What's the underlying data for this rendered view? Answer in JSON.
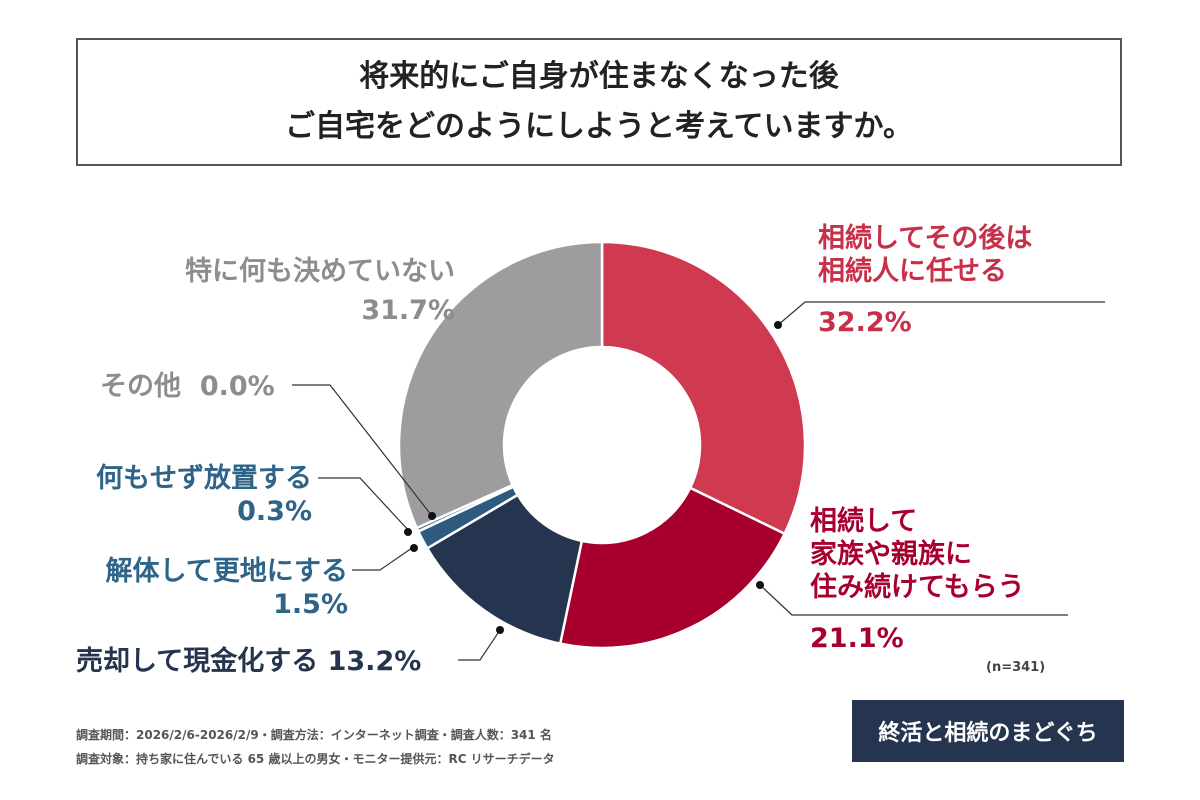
{
  "chart_data": {
    "type": "pie",
    "donut": true,
    "title": [
      "将来的にご自身が住まなくなった後",
      "ご自宅をどのようにしようと考えていますか。"
    ],
    "slices": [
      {
        "label": "相続してその後は相続人に任せる",
        "value": 32.2,
        "display": "32.2%",
        "color": "#d03a50",
        "label_color": "#c8304a"
      },
      {
        "label": "相続して家族や親族に住み続けてもらう",
        "value": 21.1,
        "display": "21.1%",
        "color": "#a8002e",
        "label_color": "#a8002e"
      },
      {
        "label": "売却して現金化する",
        "value": 13.2,
        "display": "13.2%",
        "color": "#253550",
        "label_color": "#26344f"
      },
      {
        "label": "解体して更地にする",
        "value": 1.5,
        "display": "1.5%",
        "color": "#2e5a80",
        "label_color": "#2e6488"
      },
      {
        "label": "何もせず放置する",
        "value": 0.3,
        "display": "0.3%",
        "color": "#3a6c92",
        "label_color": "#2e6488"
      },
      {
        "label": "その他",
        "value": 0.0,
        "display": "0.0%",
        "color": "#9e9c9f",
        "label_color": "#8e8c8f"
      },
      {
        "label": "特に何も決めていない",
        "value": 31.7,
        "display": "31.7%",
        "color": "#9e9c9f",
        "label_color": "#8e8c8f"
      }
    ],
    "sample": "(n=341)"
  },
  "labels": {
    "s0": [
      "相続してその後は",
      "相続人に任せる"
    ],
    "s1": [
      "相続して",
      "家族や親族に",
      "住み続けてもらう"
    ],
    "s2": "売却して現金化する",
    "s3": "解体して更地にする",
    "s4": "何もせず放置する",
    "s5": "その他",
    "s6": "特に何も決めていない"
  },
  "notes": [
    "調査期間：2026/2/6-2026/2/9・調査方法：インターネット調査・調査人数：341 名",
    "調査対象：持ち家に住んでいる 65 歳以上の男女・モニター提供元：RC リサーチデータ"
  ],
  "logo": "終活と相続のまどぐち"
}
